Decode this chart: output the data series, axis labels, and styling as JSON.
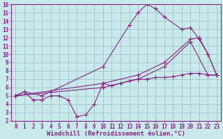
{
  "background_color": "#c8eaea",
  "grid_color": "#9bbcbc",
  "line_color": "#882288",
  "marker": "+",
  "markersize": 4,
  "linewidth": 0.8,
  "xlabel": "Windchill (Refroidissement éolien,°C)",
  "xlabel_fontsize": 6.5,
  "tick_fontsize": 5.5,
  "xlim": [
    -0.5,
    23.5
  ],
  "ylim": [
    2,
    16
  ],
  "xticks": [
    0,
    1,
    2,
    3,
    4,
    5,
    6,
    7,
    8,
    9,
    10,
    11,
    12,
    13,
    14,
    15,
    16,
    17,
    18,
    19,
    20,
    21,
    22,
    23
  ],
  "yticks": [
    2,
    3,
    4,
    5,
    6,
    7,
    8,
    9,
    10,
    11,
    12,
    13,
    14,
    15,
    16
  ],
  "series": [
    {
      "x": [
        0,
        1,
        2,
        3,
        4,
        5,
        6,
        7,
        8,
        9,
        10,
        11,
        12,
        13,
        14,
        15,
        16,
        17,
        18,
        19,
        20,
        21,
        22,
        23
      ],
      "y": [
        5,
        5.5,
        4.5,
        4.5,
        5,
        5,
        4.5,
        2.5,
        2.7,
        4.0,
        6.5,
        6.2,
        6.5,
        6.8,
        7.0,
        7.0,
        7.2,
        7.2,
        7.3,
        7.5,
        7.7,
        7.7,
        7.5,
        7.5
      ]
    },
    {
      "x": [
        0,
        1,
        3,
        4,
        10,
        13,
        14,
        15,
        16,
        17,
        19,
        20,
        21,
        22,
        23
      ],
      "y": [
        5,
        5.5,
        5,
        5.5,
        8.5,
        13.5,
        15.0,
        16.0,
        15.5,
        14.5,
        13.0,
        13.2,
        11.8,
        10.0,
        7.5
      ]
    },
    {
      "x": [
        0,
        10,
        14,
        17,
        20,
        21,
        22,
        23
      ],
      "y": [
        5,
        6.5,
        7.5,
        9.0,
        11.8,
        12.0,
        10.0,
        7.5
      ]
    },
    {
      "x": [
        0,
        10,
        14,
        17,
        20,
        22,
        23
      ],
      "y": [
        5,
        6.0,
        7.0,
        8.5,
        11.5,
        7.5,
        7.5
      ]
    }
  ]
}
